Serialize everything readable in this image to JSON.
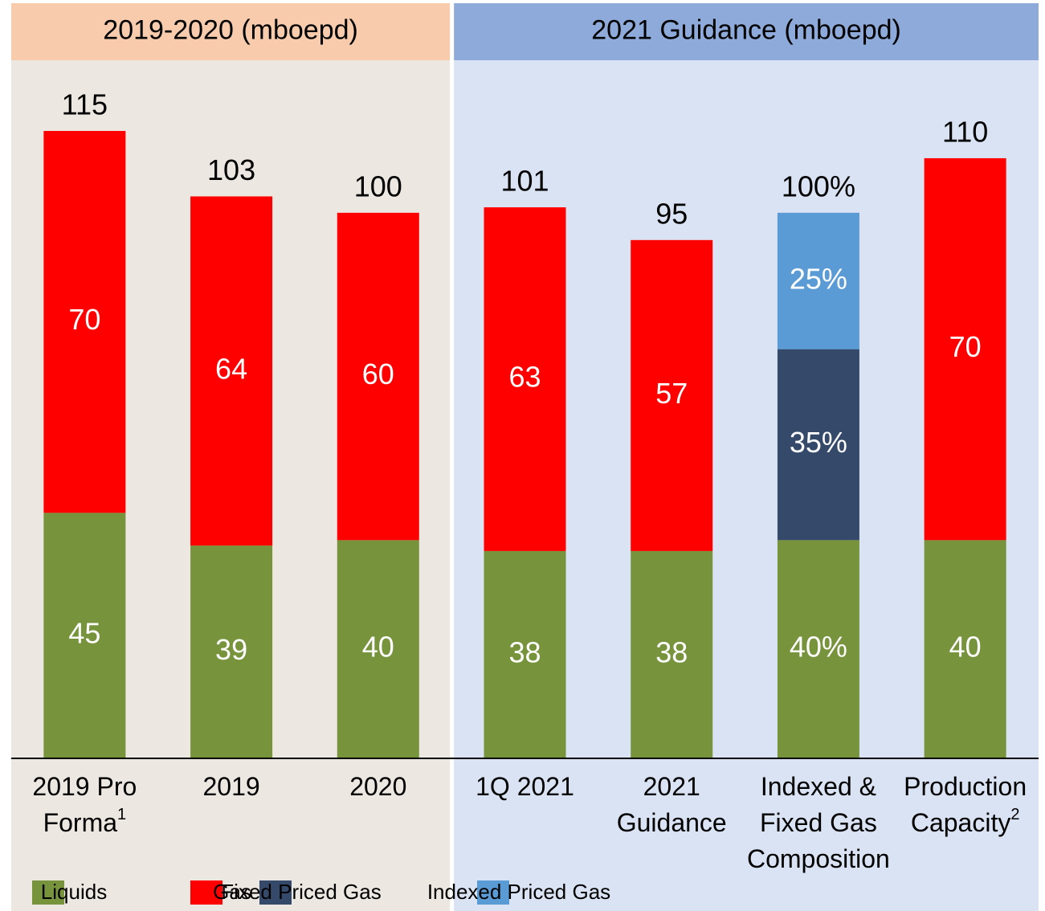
{
  "chart_data": {
    "type": "stacked-bar",
    "groups": [
      {
        "label": "2019-2020 (mboepd)",
        "count": 3,
        "header_color": "#f8cbad",
        "body_color": "#ede7e1"
      },
      {
        "label": "2021 Guidance (mboepd)",
        "count": 4,
        "header_color": "#8eaadb",
        "body_color": "#dae3f3"
      }
    ],
    "categories": [
      [
        "2019 Pro",
        "Forma"
      ],
      [
        "2019"
      ],
      [
        "2020"
      ],
      [
        "1Q 2021"
      ],
      [
        "2021",
        "Guidance"
      ],
      [
        "Indexed &",
        "Fixed Gas",
        "Composition"
      ],
      [
        "Production",
        "Capacity"
      ]
    ],
    "footnote_marks": [
      "1",
      null,
      null,
      null,
      null,
      null,
      "2"
    ],
    "series": [
      {
        "name": "Liquids",
        "color": "#77933c",
        "values": [
          45,
          39,
          40,
          38,
          38,
          40,
          40
        ],
        "value_labels": [
          "45",
          "39",
          "40",
          "38",
          "38",
          "40%",
          "40"
        ]
      },
      {
        "name": "Gas",
        "color": "#ff0000",
        "values": [
          70,
          64,
          60,
          63,
          57,
          null,
          70
        ]
      },
      {
        "name": "Fixed Priced Gas",
        "color": "#354a6b",
        "values": [
          null,
          null,
          null,
          null,
          null,
          35,
          null
        ],
        "value_labels": [
          null,
          null,
          null,
          null,
          null,
          "35%",
          null
        ]
      },
      {
        "name": "Indexed Priced Gas",
        "color": "#5b9bd5",
        "values": [
          null,
          null,
          null,
          null,
          null,
          25,
          null
        ],
        "value_labels": [
          null,
          null,
          null,
          null,
          null,
          "25%",
          null
        ]
      }
    ],
    "totals": [
      115,
      103,
      100,
      101,
      95,
      100,
      110
    ],
    "total_labels": [
      "115",
      "103",
      "100",
      "101",
      "95",
      "100%",
      "110"
    ],
    "ylim": [
      0,
      139
    ]
  }
}
